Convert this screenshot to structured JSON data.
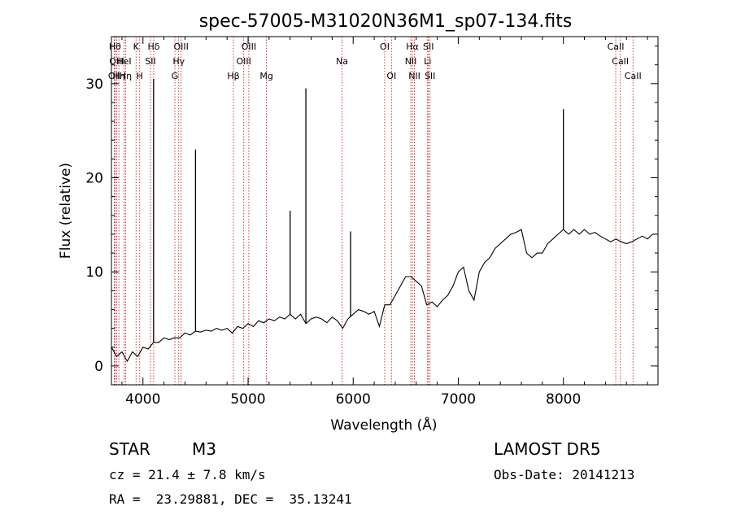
{
  "chart_data": {
    "type": "line",
    "title": "spec-57005-M31020N36M1_sp07-134.fits",
    "xlabel": "Wavelength (Å)",
    "ylabel": "Flux (relative)",
    "xlim": [
      3700,
      8900
    ],
    "ylim": [
      -2,
      35
    ],
    "xticks": [
      4000,
      5000,
      6000,
      7000,
      8000
    ],
    "yticks": [
      0,
      10,
      20,
      30
    ],
    "grid": false,
    "series": [
      {
        "x": [
          3700,
          3750,
          3800,
          3850,
          3900,
          3950,
          4000,
          4050,
          4100,
          4150,
          4200,
          4250,
          4300,
          4350,
          4400,
          4450,
          4500,
          4550,
          4600,
          4650,
          4700,
          4750,
          4800,
          4850,
          4900,
          4950,
          5000,
          5050,
          5100,
          5150,
          5200,
          5250,
          5300,
          5350,
          5400,
          5450,
          5500,
          5550,
          5600,
          5650,
          5700,
          5750,
          5800,
          5850,
          5900,
          5950,
          6000,
          6050,
          6100,
          6150,
          6200,
          6250,
          6300,
          6350,
          6400,
          6450,
          6500,
          6550,
          6600,
          6650,
          6700,
          6750,
          6800,
          6850,
          6900,
          6950,
          7000,
          7050,
          7100,
          7150,
          7200,
          7250,
          7300,
          7350,
          7400,
          7450,
          7500,
          7550,
          7600,
          7650,
          7700,
          7750,
          7800,
          7850,
          7900,
          7950,
          8000,
          8050,
          8100,
          8150,
          8200,
          8250,
          8300,
          8350,
          8400,
          8450,
          8500,
          8550,
          8600,
          8650,
          8700,
          8750,
          8800,
          8850,
          8880
        ],
        "y": [
          2,
          1,
          1.5,
          0.5,
          1.5,
          1,
          2,
          1.8,
          2.5,
          2.5,
          3,
          2.8,
          3,
          3,
          3.5,
          3.3,
          3.7,
          3.6,
          3.8,
          3.7,
          4,
          3.8,
          4,
          3.5,
          4.2,
          4,
          4.5,
          4.2,
          4.8,
          4.6,
          5,
          4.8,
          5.2,
          5,
          5.5,
          5,
          5.5,
          4.5,
          5,
          5.2,
          5,
          4.6,
          5.2,
          4.8,
          4,
          5,
          5.5,
          6,
          5.8,
          5.5,
          5.8,
          4.2,
          6.5,
          6.5,
          7.5,
          8.5,
          9.5,
          9.5,
          9,
          8.5,
          6.5,
          6.8,
          6.3,
          7,
          7.5,
          8.5,
          10,
          10.5,
          8,
          7,
          10,
          11,
          11.5,
          12.5,
          13,
          13.5,
          14,
          14.2,
          14.5,
          12,
          11.5,
          12,
          12,
          13,
          13.5,
          14,
          14.5,
          14,
          14.5,
          14,
          14.5,
          14,
          14.2,
          13.8,
          13.5,
          13.2,
          13.5,
          13.2,
          13,
          13.2,
          13.5,
          13.8,
          13.5,
          14,
          14
        ]
      }
    ],
    "spikes": [
      {
        "x": 4101,
        "peak": 30.5
      },
      {
        "x": 4500,
        "peak": 23
      },
      {
        "x": 5400,
        "peak": 16.5
      },
      {
        "x": 5550,
        "peak": 29.5
      },
      {
        "x": 5975,
        "peak": 14.3
      },
      {
        "x": 8000,
        "peak": 27.3
      }
    ],
    "line_markers": [
      {
        "x": 3727,
        "label": "OII",
        "row": 2
      },
      {
        "x": 3734,
        "label": "Hθ",
        "row": 0
      },
      {
        "x": 3750,
        "label": "OIII",
        "row": 1
      },
      {
        "x": 3771,
        "label": "Hη",
        "row": 2
      },
      {
        "x": 3820,
        "label": "HeI",
        "row": 1
      },
      {
        "x": 3835,
        "label": "Hη",
        "row": 2
      },
      {
        "x": 3934,
        "label": "K",
        "row": 0
      },
      {
        "x": 3969,
        "label": "H",
        "row": 2
      },
      {
        "x": 4072,
        "label": "SII",
        "row": 1
      },
      {
        "x": 4102,
        "label": "Hδ",
        "row": 0
      },
      {
        "x": 4304,
        "label": "G",
        "row": 2
      },
      {
        "x": 4340,
        "label": "Hγ",
        "row": 1
      },
      {
        "x": 4363,
        "label": "OIII",
        "row": 0
      },
      {
        "x": 4861,
        "label": "Hβ",
        "row": 2
      },
      {
        "x": 4959,
        "label": "OIII",
        "row": 1
      },
      {
        "x": 5007,
        "label": "OIII",
        "row": 0
      },
      {
        "x": 5175,
        "label": "Mg",
        "row": 2
      },
      {
        "x": 5894,
        "label": "Na",
        "row": 1
      },
      {
        "x": 6300,
        "label": "OI",
        "row": 0
      },
      {
        "x": 6364,
        "label": "OI",
        "row": 2
      },
      {
        "x": 6548,
        "label": "NII",
        "row": 1
      },
      {
        "x": 6563,
        "label": "Hα",
        "row": 0
      },
      {
        "x": 6583,
        "label": "NII",
        "row": 2
      },
      {
        "x": 6708,
        "label": "Li",
        "row": 1
      },
      {
        "x": 6716,
        "label": "SII",
        "row": 0
      },
      {
        "x": 6731,
        "label": "SII",
        "row": 2
      },
      {
        "x": 8498,
        "label": "CaII",
        "row": 0
      },
      {
        "x": 8542,
        "label": "CaII",
        "row": 1
      },
      {
        "x": 8662,
        "label": "CaII",
        "row": 2
      }
    ],
    "colors": {
      "spectrum": "#000000",
      "marker_line": "#cc0000",
      "axes": "#000000"
    }
  },
  "info": {
    "object_class": "STAR",
    "subclass": "M3",
    "survey": "LAMOST DR5",
    "redshift": "cz = 21.4 ± 7.8 km/s",
    "obs_date": "Obs-Date: 20141213",
    "coords": "RA =  23.29881, DEC =  35.13241"
  }
}
